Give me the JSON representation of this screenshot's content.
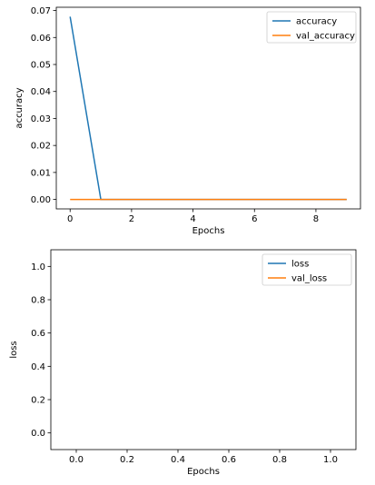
{
  "chart_data": [
    {
      "type": "line",
      "xlabel": "Epochs",
      "ylabel": "accuracy",
      "xlim": [
        -0.45,
        9.45
      ],
      "ylim": [
        -0.0035,
        0.0712
      ],
      "xticks": [
        0,
        2,
        4,
        6,
        8
      ],
      "xtick_labels": [
        "0",
        "2",
        "4",
        "6",
        "8"
      ],
      "yticks": [
        0.0,
        0.01,
        0.02,
        0.03,
        0.04,
        0.05,
        0.06,
        0.07
      ],
      "ytick_labels": [
        "0.00",
        "0.01",
        "0.02",
        "0.03",
        "0.04",
        "0.05",
        "0.06",
        "0.07"
      ],
      "grid": false,
      "legend_position": "upper right",
      "x": [
        0,
        1,
        2,
        3,
        4,
        5,
        6,
        7,
        8,
        9
      ],
      "series": [
        {
          "name": "accuracy",
          "color": "#1f77b4",
          "values": [
            0.0677,
            0.0,
            0.0,
            0.0,
            0.0,
            0.0,
            0.0,
            0.0,
            0.0,
            0.0
          ]
        },
        {
          "name": "val_accuracy",
          "color": "#ff7f0e",
          "values": [
            0.0,
            0.0,
            0.0,
            0.0,
            0.0,
            0.0,
            0.0,
            0.0,
            0.0,
            0.0
          ]
        }
      ]
    },
    {
      "type": "line",
      "xlabel": "Epochs",
      "ylabel": "loss",
      "xlim": [
        -0.1,
        1.1
      ],
      "ylim": [
        -0.1,
        1.1
      ],
      "xticks": [
        0.0,
        0.2,
        0.4,
        0.6,
        0.8,
        1.0
      ],
      "xtick_labels": [
        "0.0",
        "0.2",
        "0.4",
        "0.6",
        "0.8",
        "1.0"
      ],
      "yticks": [
        0.0,
        0.2,
        0.4,
        0.6,
        0.8,
        1.0
      ],
      "ytick_labels": [
        "0.0",
        "0.2",
        "0.4",
        "0.6",
        "0.8",
        "1.0"
      ],
      "grid": false,
      "legend_position": "upper right",
      "x": [],
      "series": [
        {
          "name": "loss",
          "color": "#1f77b4",
          "values": []
        },
        {
          "name": "val_loss",
          "color": "#ff7f0e",
          "values": []
        }
      ]
    }
  ]
}
